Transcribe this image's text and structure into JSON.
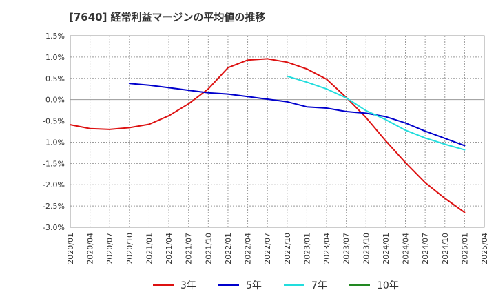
{
  "chart_data": {
    "type": "line",
    "title": "[7640]  経常利益マージンの平均値の推移",
    "xlabel": "",
    "ylabel": "",
    "ylim": [
      -3.0,
      1.5
    ],
    "y_ticks": [
      "1.5%",
      "1.0%",
      "0.5%",
      "0.0%",
      "-0.5%",
      "-1.0%",
      "-1.5%",
      "-2.0%",
      "-2.5%",
      "-3.0%"
    ],
    "y_tick_values": [
      1.5,
      1.0,
      0.5,
      0.0,
      -0.5,
      -1.0,
      -1.5,
      -2.0,
      -2.5,
      -3.0
    ],
    "categories": [
      "2020/01",
      "2020/04",
      "2020/07",
      "2020/10",
      "2021/01",
      "2021/04",
      "2021/07",
      "2021/10",
      "2022/01",
      "2022/04",
      "2022/07",
      "2022/10",
      "2023/01",
      "2023/04",
      "2023/07",
      "2023/10",
      "2024/01",
      "2024/04",
      "2024/07",
      "2024/10",
      "2025/01",
      "2025/04"
    ],
    "grid": true,
    "legend_position": "bottom",
    "series": [
      {
        "name": "3年",
        "color": "#dd1111",
        "points": [
          [
            0,
            -0.59
          ],
          [
            1,
            -0.68
          ],
          [
            2,
            -0.7
          ],
          [
            3,
            -0.66
          ],
          [
            4,
            -0.58
          ],
          [
            5,
            -0.38
          ],
          [
            6,
            -0.1
          ],
          [
            7,
            0.25
          ],
          [
            8,
            0.75
          ],
          [
            9,
            0.93
          ],
          [
            10,
            0.96
          ],
          [
            11,
            0.88
          ],
          [
            12,
            0.72
          ],
          [
            13,
            0.48
          ],
          [
            14,
            0.05
          ],
          [
            15,
            -0.42
          ],
          [
            16,
            -0.97
          ],
          [
            17,
            -1.48
          ],
          [
            18,
            -1.95
          ],
          [
            19,
            -2.32
          ],
          [
            20,
            -2.65
          ]
        ]
      },
      {
        "name": "5年",
        "color": "#0000cc",
        "points": [
          [
            3,
            0.38
          ],
          [
            4,
            0.34
          ],
          [
            5,
            0.28
          ],
          [
            6,
            0.22
          ],
          [
            7,
            0.16
          ],
          [
            8,
            0.13
          ],
          [
            9,
            0.07
          ],
          [
            10,
            0.01
          ],
          [
            11,
            -0.05
          ],
          [
            12,
            -0.17
          ],
          [
            13,
            -0.2
          ],
          [
            14,
            -0.28
          ],
          [
            15,
            -0.32
          ],
          [
            16,
            -0.4
          ],
          [
            17,
            -0.55
          ],
          [
            18,
            -0.74
          ],
          [
            19,
            -0.91
          ],
          [
            20,
            -1.08
          ]
        ]
      },
      {
        "name": "7年",
        "color": "#22dddd",
        "points": [
          [
            11,
            0.55
          ],
          [
            12,
            0.41
          ],
          [
            13,
            0.25
          ],
          [
            14,
            0.04
          ],
          [
            15,
            -0.26
          ],
          [
            16,
            -0.47
          ],
          [
            17,
            -0.72
          ],
          [
            18,
            -0.9
          ],
          [
            19,
            -1.05
          ],
          [
            20,
            -1.18
          ]
        ]
      },
      {
        "name": "10年",
        "color": "#228822",
        "points": []
      }
    ]
  }
}
